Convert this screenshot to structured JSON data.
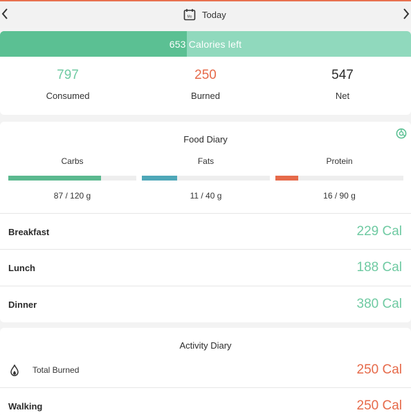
{
  "header": {
    "date_label": "Today",
    "calendar_icon_text": "Mo",
    "prev_icon": "chevron-left-icon",
    "next_icon": "chevron-right-icon"
  },
  "calories": {
    "left_label": "653 Calories left",
    "progress_fraction": 0.455
  },
  "summary": {
    "consumed": {
      "value": "797",
      "label": "Consumed"
    },
    "burned": {
      "value": "250",
      "label": "Burned"
    },
    "net": {
      "value": "547",
      "label": "Net"
    }
  },
  "food_diary": {
    "title": "Food Diary",
    "macros": [
      {
        "label": "Carbs",
        "value": "87 / 120 g",
        "fraction": 0.725,
        "color": "#5bb98f"
      },
      {
        "label": "Fats",
        "value": "11 / 40 g",
        "fraction": 0.275,
        "color": "#4ea7b8"
      },
      {
        "label": "Protein",
        "value": "16 / 90 g",
        "fraction": 0.178,
        "color": "#e66a4a"
      }
    ],
    "meals": [
      {
        "name": "Breakfast",
        "cal": "229 Cal"
      },
      {
        "name": "Lunch",
        "cal": "188 Cal"
      },
      {
        "name": "Dinner",
        "cal": "380 Cal"
      }
    ]
  },
  "activity_diary": {
    "title": "Activity Diary",
    "total_label": "Total Burned",
    "total_value": "250 Cal",
    "items": [
      {
        "name": "Walking",
        "cal": "250 Cal"
      }
    ]
  },
  "colors": {
    "accent_green": "#5bc093",
    "accent_orange": "#e66a4a",
    "light_green": "#90d9bd"
  }
}
